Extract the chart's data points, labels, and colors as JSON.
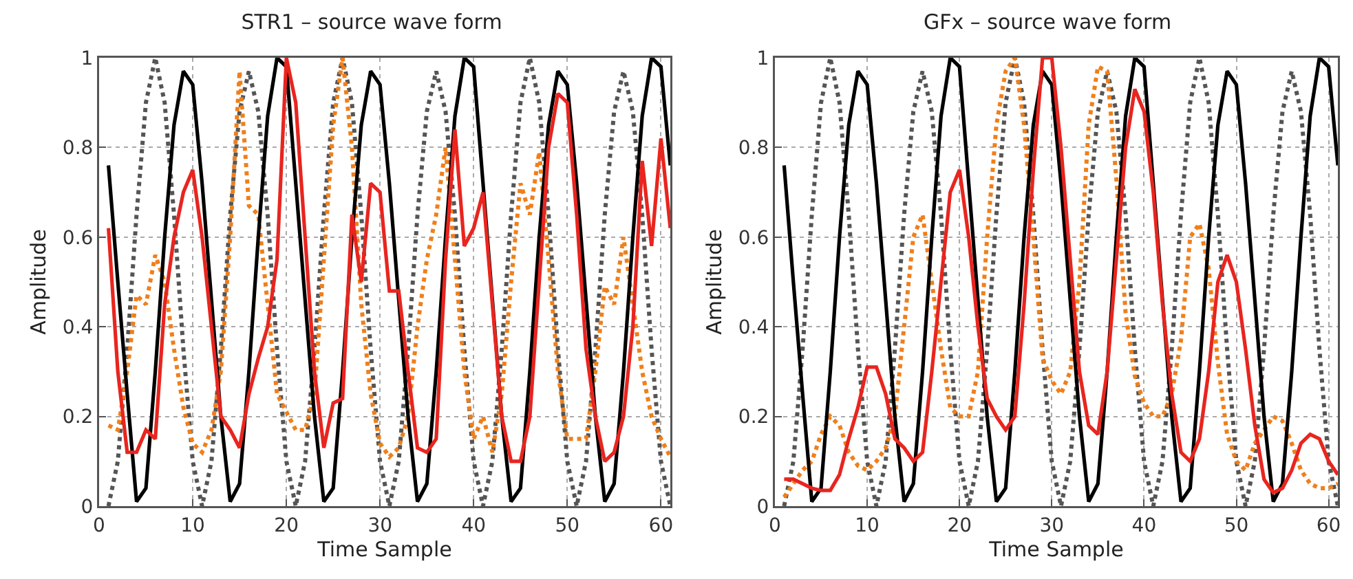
{
  "chart_data": [
    {
      "type": "line",
      "title": "STR1 – source wave form",
      "xlabel": "Time Sample",
      "ylabel": "Amplitude",
      "xlim": [
        0,
        61
      ],
      "ylim": [
        0,
        1
      ],
      "xticks": [
        0,
        10,
        20,
        30,
        40,
        50,
        60
      ],
      "yticks": [
        {
          "value": 0,
          "label": "0"
        },
        {
          "value": 0.2,
          "label": "0.2"
        },
        {
          "value": 0.4,
          "label": "0.4"
        },
        {
          "value": 0.6,
          "label": "0.6"
        },
        {
          "value": 0.8,
          "label": "0.8"
        },
        {
          "value": 1,
          "label": "1"
        }
      ],
      "grid": true,
      "marker": "none",
      "x": [
        1,
        2,
        3,
        4,
        5,
        6,
        7,
        8,
        9,
        10,
        11,
        12,
        13,
        14,
        15,
        16,
        17,
        18,
        19,
        20,
        21,
        22,
        23,
        24,
        25,
        26,
        27,
        28,
        29,
        30,
        31,
        32,
        33,
        34,
        35,
        36,
        37,
        38,
        39,
        40,
        41,
        42,
        43,
        44,
        45,
        46,
        47,
        48,
        49,
        50,
        51,
        52,
        53,
        54,
        55,
        56,
        57,
        58,
        59,
        60,
        61
      ],
      "series": [
        {
          "color": "#555555",
          "line_style": "dotted",
          "values": [
            0,
            0.1,
            0.35,
            0.65,
            0.9,
            1.0,
            0.9,
            0.65,
            0.35,
            0.1,
            0,
            0.1,
            0.35,
            0.65,
            0.88,
            0.97,
            0.88,
            0.65,
            0.35,
            0.1,
            0,
            0.1,
            0.35,
            0.65,
            0.9,
            1.0,
            0.9,
            0.65,
            0.35,
            0.1,
            0,
            0.1,
            0.35,
            0.65,
            0.88,
            0.97,
            0.88,
            0.65,
            0.35,
            0.1,
            0,
            0.1,
            0.35,
            0.65,
            0.9,
            1.0,
            0.9,
            0.65,
            0.35,
            0.1,
            0,
            0.1,
            0.35,
            0.65,
            0.88,
            0.97,
            0.88,
            0.65,
            0.35,
            0.1,
            0
          ]
        },
        {
          "color": "#f07f1a",
          "line_style": "dotted",
          "values": [
            0.18,
            0.17,
            0.3,
            0.47,
            0.45,
            0.56,
            0.5,
            0.35,
            0.22,
            0.14,
            0.12,
            0.17,
            0.3,
            0.6,
            0.97,
            0.67,
            0.65,
            0.45,
            0.25,
            0.21,
            0.17,
            0.17,
            0.25,
            0.55,
            0.85,
            1.0,
            0.8,
            0.45,
            0.25,
            0.14,
            0.11,
            0.13,
            0.2,
            0.4,
            0.55,
            0.65,
            0.8,
            0.55,
            0.3,
            0.15,
            0.2,
            0.12,
            0.25,
            0.5,
            0.72,
            0.65,
            0.79,
            0.55,
            0.3,
            0.15,
            0.15,
            0.15,
            0.3,
            0.49,
            0.45,
            0.6,
            0.45,
            0.3,
            0.2,
            0.15,
            0.11
          ]
        },
        {
          "color": "#000000",
          "line_style": "solid",
          "values": [
            0.76,
            0.5,
            0.25,
            0.01,
            0.04,
            0.3,
            0.6,
            0.85,
            0.97,
            0.94,
            0.72,
            0.46,
            0.2,
            0.01,
            0.05,
            0.3,
            0.6,
            0.87,
            1.0,
            0.98,
            0.72,
            0.46,
            0.2,
            0.01,
            0.04,
            0.3,
            0.6,
            0.85,
            0.97,
            0.94,
            0.72,
            0.46,
            0.2,
            0.01,
            0.05,
            0.3,
            0.6,
            0.87,
            1.0,
            0.98,
            0.72,
            0.46,
            0.2,
            0.01,
            0.04,
            0.3,
            0.6,
            0.85,
            0.97,
            0.94,
            0.72,
            0.46,
            0.2,
            0.01,
            0.05,
            0.3,
            0.6,
            0.87,
            1.0,
            0.98,
            0.76
          ]
        },
        {
          "color": "#e8251f",
          "line_style": "solid",
          "values": [
            0.62,
            0.3,
            0.12,
            0.12,
            0.17,
            0.15,
            0.45,
            0.6,
            0.7,
            0.75,
            0.6,
            0.4,
            0.2,
            0.17,
            0.13,
            0.25,
            0.33,
            0.4,
            0.55,
            1.0,
            0.9,
            0.6,
            0.3,
            0.13,
            0.23,
            0.24,
            0.65,
            0.5,
            0.72,
            0.7,
            0.48,
            0.48,
            0.3,
            0.13,
            0.12,
            0.15,
            0.55,
            0.84,
            0.58,
            0.62,
            0.7,
            0.45,
            0.2,
            0.1,
            0.1,
            0.2,
            0.5,
            0.8,
            0.92,
            0.9,
            0.65,
            0.35,
            0.2,
            0.1,
            0.12,
            0.2,
            0.4,
            0.77,
            0.58,
            0.82,
            0.62
          ]
        }
      ]
    },
    {
      "type": "line",
      "title": "GFx – source wave form",
      "xlabel": "Time Sample",
      "ylabel": "Amplitude",
      "xlim": [
        0,
        61
      ],
      "ylim": [
        0,
        1
      ],
      "xticks": [
        0,
        10,
        20,
        30,
        40,
        50,
        60
      ],
      "yticks": [
        {
          "value": 0,
          "label": "0"
        },
        {
          "value": 0.2,
          "label": "0.2"
        },
        {
          "value": 0.4,
          "label": "0.4"
        },
        {
          "value": 0.6,
          "label": "0.6"
        },
        {
          "value": 0.8,
          "label": "0.8"
        },
        {
          "value": 1,
          "label": "1"
        }
      ],
      "grid": true,
      "marker": "none",
      "x": [
        1,
        2,
        3,
        4,
        5,
        6,
        7,
        8,
        9,
        10,
        11,
        12,
        13,
        14,
        15,
        16,
        17,
        18,
        19,
        20,
        21,
        22,
        23,
        24,
        25,
        26,
        27,
        28,
        29,
        30,
        31,
        32,
        33,
        34,
        35,
        36,
        37,
        38,
        39,
        40,
        41,
        42,
        43,
        44,
        45,
        46,
        47,
        48,
        49,
        50,
        51,
        52,
        53,
        54,
        55,
        56,
        57,
        58,
        59,
        60,
        61
      ],
      "series": [
        {
          "color": "#555555",
          "line_style": "dotted",
          "values": [
            0,
            0.1,
            0.35,
            0.65,
            0.9,
            1.0,
            0.9,
            0.65,
            0.35,
            0.1,
            0,
            0.1,
            0.35,
            0.65,
            0.88,
            0.97,
            0.88,
            0.65,
            0.35,
            0.1,
            0,
            0.1,
            0.35,
            0.65,
            0.9,
            1.0,
            0.9,
            0.65,
            0.35,
            0.1,
            0,
            0.1,
            0.35,
            0.65,
            0.88,
            0.97,
            0.88,
            0.65,
            0.35,
            0.1,
            0,
            0.1,
            0.35,
            0.65,
            0.9,
            1.0,
            0.9,
            0.65,
            0.35,
            0.1,
            0,
            0.1,
            0.35,
            0.65,
            0.88,
            0.97,
            0.88,
            0.65,
            0.35,
            0.1,
            0
          ]
        },
        {
          "color": "#f07f1a",
          "line_style": "dotted",
          "values": [
            0.02,
            0.05,
            0.08,
            0.1,
            0.16,
            0.2,
            0.18,
            0.12,
            0.09,
            0.08,
            0.1,
            0.13,
            0.2,
            0.4,
            0.6,
            0.65,
            0.5,
            0.35,
            0.22,
            0.2,
            0.2,
            0.3,
            0.6,
            0.85,
            0.97,
            1.0,
            0.85,
            0.6,
            0.33,
            0.28,
            0.25,
            0.3,
            0.5,
            0.85,
            0.98,
            0.97,
            0.73,
            0.43,
            0.29,
            0.23,
            0.2,
            0.2,
            0.25,
            0.37,
            0.6,
            0.63,
            0.53,
            0.32,
            0.16,
            0.1,
            0.08,
            0.14,
            0.17,
            0.2,
            0.19,
            0.14,
            0.08,
            0.05,
            0.04,
            0.04,
            0.05
          ]
        },
        {
          "color": "#000000",
          "line_style": "solid",
          "values": [
            0.76,
            0.5,
            0.25,
            0.01,
            0.04,
            0.3,
            0.6,
            0.85,
            0.97,
            0.94,
            0.72,
            0.46,
            0.2,
            0.01,
            0.05,
            0.3,
            0.6,
            0.87,
            1.0,
            0.98,
            0.72,
            0.46,
            0.2,
            0.01,
            0.04,
            0.3,
            0.6,
            0.85,
            0.97,
            0.94,
            0.72,
            0.46,
            0.2,
            0.01,
            0.05,
            0.3,
            0.6,
            0.87,
            1.0,
            0.98,
            0.72,
            0.46,
            0.2,
            0.01,
            0.04,
            0.3,
            0.6,
            0.85,
            0.97,
            0.94,
            0.72,
            0.46,
            0.2,
            0.01,
            0.05,
            0.3,
            0.6,
            0.87,
            1.0,
            0.98,
            0.76
          ]
        },
        {
          "color": "#e8251f",
          "line_style": "solid",
          "values": [
            0.06,
            0.06,
            0.05,
            0.04,
            0.035,
            0.035,
            0.07,
            0.15,
            0.22,
            0.31,
            0.31,
            0.25,
            0.15,
            0.13,
            0.1,
            0.12,
            0.3,
            0.5,
            0.7,
            0.75,
            0.6,
            0.4,
            0.24,
            0.2,
            0.17,
            0.2,
            0.45,
            0.75,
            1.0,
            1.0,
            0.8,
            0.55,
            0.3,
            0.18,
            0.16,
            0.3,
            0.55,
            0.8,
            0.93,
            0.88,
            0.7,
            0.45,
            0.25,
            0.12,
            0.1,
            0.15,
            0.3,
            0.5,
            0.56,
            0.5,
            0.35,
            0.18,
            0.06,
            0.03,
            0.04,
            0.08,
            0.14,
            0.16,
            0.15,
            0.1,
            0.07
          ]
        }
      ]
    }
  ]
}
